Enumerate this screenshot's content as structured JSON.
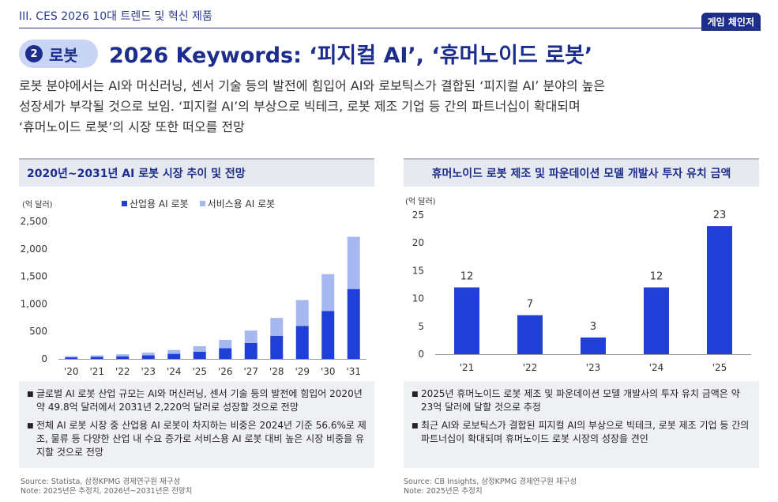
{
  "header": {
    "section_label": "III. CES 2026 10대 트렌드 및 혁신 제품",
    "badge": "게임 체인저",
    "keyword_number": "2",
    "keyword_label": "로봇",
    "title": "2026 Keywords: ‘피지컬 AI’, ‘휴머노이드 로봇’"
  },
  "description": [
    "로봇 분야에서는 AI와 머신러닝, 센서 기술 등의 발전에 힘입어 AI와 로보틱스가 결합된 ‘피지컬 AI’ 분야의 높은",
    "성장세가 부각될 것으로 보임. ‘피지컬 AI’의 부상으로 빅테크, 로봇 제조 기업 등 간의 파트너십이 확대되며",
    "‘휴머노이드 로봇’의 시장 또한 떠오를 전망"
  ],
  "left_panel": {
    "title": "2020년~2031년 AI 로봇 시장 추이 및 전망",
    "unit": "(억 달러)",
    "notes": [
      "글로벌 AI 로봇 산업 규모는 AI와 머신러닝, 센서 기술 등의 발전에 힘입어 2020년 약 49.8억 달러에서 2031년 2,220억 달러로 성장할 것으로 전망",
      "전체 AI 로봇 시장 중 산업용 AI 로봇이 차지하는 비중은 2024년 기준 56.6%로 제조, 물류 등 다양한 산업 내 수요 증가로 서비스용 AI 로봇 대비 높은 시장 비중을 유지할 것으로 전망"
    ],
    "source": "Source: Statista, 삼정KPMG 경제연구원 재구성",
    "note": "Note: 2025년은 추정치, 2026년~2031년은 전망치"
  },
  "right_panel": {
    "title": "휴머노이드 로봇 제조 및 파운데이션 모델 개발사 투자 유치 금액",
    "unit": "(억 달러)",
    "notes": [
      "2025년 휴머노이드 로봇 제조 및 파운데이션 모델 개발사의 투자 유치 금액은 약 23억 달러에 달할 것으로 추정",
      "최근 AI와 로보틱스가 결합된 피지컬 AI의 부상으로 빅테크, 로봇 제조 기업 등 간의 파트너십이 확대되며 휴머노이드 로봇 시장의 성장을 견인"
    ],
    "source": "Source: CB Insights, 삼정KPMG 경제연구원 재구성",
    "note": "Note: 2025년은 추정치"
  },
  "chart_data": [
    {
      "type": "bar",
      "stacked": true,
      "title": "2020년~2031년 AI 로봇 시장 추이 및 전망",
      "ylabel": "(억 달러)",
      "categories": [
        "'20",
        "'21",
        "'22",
        "'23",
        "'24",
        "'25",
        "'26",
        "'27",
        "'28",
        "'29",
        "'30",
        "'31"
      ],
      "series": [
        {
          "name": "산업용 AI 로봇",
          "color": "#1f3fd6",
          "values": [
            28,
            37,
            48,
            65,
            92,
            130,
            195,
            290,
            420,
            600,
            870,
            1270
          ]
        },
        {
          "name": "서비스용 AI 로봇",
          "color": "#a7b8f0",
          "values": [
            22,
            28,
            37,
            50,
            70,
            100,
            150,
            225,
            325,
            470,
            670,
            950
          ]
        }
      ],
      "yticks": [
        "0",
        "500",
        "1,000",
        "1,500",
        "2,000",
        "2,500"
      ],
      "ylim": [
        0,
        2500
      ],
      "legend": "top"
    },
    {
      "type": "bar",
      "title": "휴머노이드 로봇 제조 및 파운데이션 모델 개발사 투자 유치 금액",
      "ylabel": "(억 달러)",
      "categories": [
        "'21",
        "'22",
        "'23",
        "'24",
        "'25"
      ],
      "values": [
        12,
        7,
        3,
        12,
        23
      ],
      "color": "#1f3fd6",
      "yticks": [
        "0",
        "5",
        "10",
        "15",
        "20",
        "25"
      ],
      "ylim": [
        0,
        25
      ]
    }
  ]
}
